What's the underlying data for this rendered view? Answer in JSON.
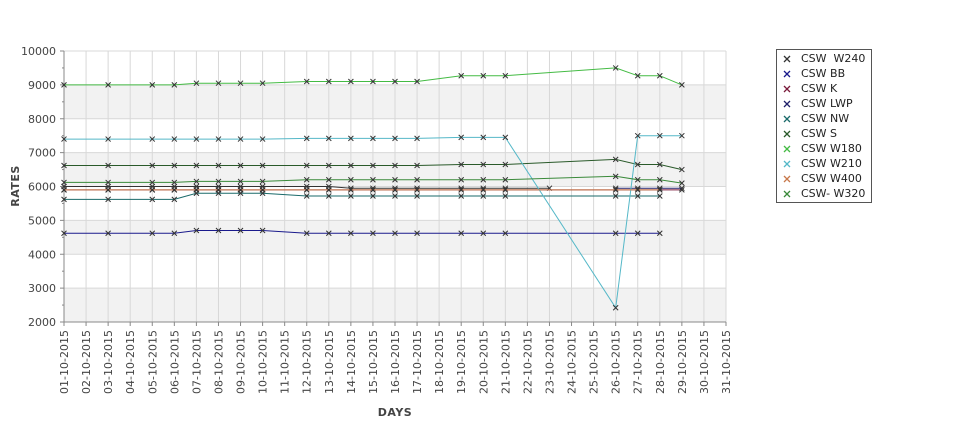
{
  "chart_data": {
    "type": "line",
    "xlabel": "DAYS",
    "ylabel": "RATES",
    "ylim": [
      2000,
      10000
    ],
    "yticks": [
      2000,
      3000,
      4000,
      5000,
      6000,
      7000,
      8000,
      9000,
      10000
    ],
    "x": [
      "01-10-2015",
      "02-10-2015",
      "03-10-2015",
      "04-10-2015",
      "05-10-2015",
      "06-10-2015",
      "07-10-2015",
      "08-10-2015",
      "09-10-2015",
      "10-10-2015",
      "11-10-2015",
      "12-10-2015",
      "13-10-2015",
      "14-10-2015",
      "15-10-2015",
      "16-10-2015",
      "17-10-2015",
      "18-10-2015",
      "19-10-2015",
      "20-10-2015",
      "21-10-2015",
      "22-10-2015",
      "23-10-2015",
      "24-10-2015",
      "25-10-2015",
      "26-10-2015",
      "27-10-2015",
      "28-10-2015",
      "29-10-2015",
      "30-10-2015",
      "31-10-2015"
    ],
    "grid": true,
    "legend_position": "right",
    "series": [
      {
        "name": "CSW  W240",
        "color": "#333333",
        "points": [
          [
            1,
            6000
          ],
          [
            3,
            6000
          ],
          [
            5,
            6000
          ],
          [
            6,
            6000
          ],
          [
            7,
            6000
          ],
          [
            8,
            6000
          ],
          [
            9,
            6000
          ],
          [
            10,
            6000
          ],
          [
            12,
            6000
          ],
          [
            13,
            6000
          ],
          [
            14,
            5950
          ],
          [
            15,
            5950
          ],
          [
            16,
            5950
          ],
          [
            17,
            5950
          ],
          [
            19,
            5950
          ],
          [
            20,
            5950
          ],
          [
            21,
            5950
          ],
          [
            23,
            5950
          ]
        ]
      },
      {
        "name": "CSW BB",
        "color": "#1a1a8c",
        "points": [
          [
            1,
            4620
          ],
          [
            3,
            4620
          ],
          [
            5,
            4620
          ],
          [
            6,
            4620
          ],
          [
            7,
            4700
          ],
          [
            8,
            4700
          ],
          [
            9,
            4700
          ],
          [
            10,
            4700
          ],
          [
            12,
            4620
          ],
          [
            13,
            4620
          ],
          [
            14,
            4620
          ],
          [
            15,
            4620
          ],
          [
            16,
            4620
          ],
          [
            17,
            4620
          ],
          [
            19,
            4620
          ],
          [
            20,
            4620
          ],
          [
            21,
            4620
          ],
          [
            26,
            4620
          ],
          [
            27,
            4620
          ],
          [
            28,
            4620
          ]
        ]
      },
      {
        "name": "CSW K",
        "color": "#7a1a3a",
        "points": [
          [
            1,
            5900
          ],
          [
            3,
            5900
          ],
          [
            5,
            5900
          ],
          [
            6,
            5900
          ],
          [
            7,
            5900
          ],
          [
            8,
            5900
          ],
          [
            9,
            5900
          ],
          [
            10,
            5900
          ],
          [
            12,
            5900
          ],
          [
            13,
            5900
          ],
          [
            14,
            5900
          ],
          [
            15,
            5900
          ],
          [
            16,
            5900
          ],
          [
            17,
            5900
          ],
          [
            19,
            5900
          ],
          [
            20,
            5900
          ],
          [
            21,
            5900
          ],
          [
            26,
            5900
          ],
          [
            27,
            5900
          ],
          [
            28,
            5900
          ],
          [
            29,
            5900
          ]
        ]
      },
      {
        "name": "CSW LWP",
        "color": "#20206a",
        "points": [
          [
            26,
            5950
          ],
          [
            27,
            5950
          ],
          [
            28,
            5950
          ],
          [
            29,
            5950
          ]
        ]
      },
      {
        "name": "CSW NW",
        "color": "#1a6a6a",
        "points": [
          [
            1,
            5620
          ],
          [
            3,
            5620
          ],
          [
            5,
            5620
          ],
          [
            6,
            5620
          ],
          [
            7,
            5800
          ],
          [
            8,
            5800
          ],
          [
            9,
            5800
          ],
          [
            10,
            5800
          ],
          [
            12,
            5720
          ],
          [
            13,
            5720
          ],
          [
            14,
            5720
          ],
          [
            15,
            5720
          ],
          [
            16,
            5720
          ],
          [
            17,
            5720
          ],
          [
            19,
            5720
          ],
          [
            20,
            5720
          ],
          [
            21,
            5720
          ],
          [
            26,
            5720
          ],
          [
            27,
            5720
          ],
          [
            28,
            5720
          ]
        ]
      },
      {
        "name": "CSW S",
        "color": "#2a5a2a",
        "points": [
          [
            1,
            6620
          ],
          [
            3,
            6620
          ],
          [
            5,
            6620
          ],
          [
            6,
            6620
          ],
          [
            7,
            6620
          ],
          [
            8,
            6620
          ],
          [
            9,
            6620
          ],
          [
            10,
            6620
          ],
          [
            12,
            6620
          ],
          [
            13,
            6620
          ],
          [
            14,
            6620
          ],
          [
            15,
            6620
          ],
          [
            16,
            6620
          ],
          [
            17,
            6620
          ],
          [
            19,
            6650
          ],
          [
            20,
            6650
          ],
          [
            21,
            6650
          ],
          [
            26,
            6800
          ],
          [
            27,
            6650
          ],
          [
            28,
            6650
          ],
          [
            29,
            6500
          ]
        ]
      },
      {
        "name": "CSW W180",
        "color": "#44bb44",
        "points": [
          [
            1,
            9000
          ],
          [
            3,
            9000
          ],
          [
            5,
            9000
          ],
          [
            6,
            9000
          ],
          [
            7,
            9050
          ],
          [
            8,
            9050
          ],
          [
            9,
            9050
          ],
          [
            10,
            9050
          ],
          [
            12,
            9100
          ],
          [
            13,
            9100
          ],
          [
            14,
            9100
          ],
          [
            15,
            9100
          ],
          [
            16,
            9100
          ],
          [
            17,
            9100
          ],
          [
            19,
            9270
          ],
          [
            20,
            9270
          ],
          [
            21,
            9270
          ],
          [
            26,
            9500
          ],
          [
            27,
            9270
          ],
          [
            28,
            9270
          ],
          [
            29,
            9000
          ]
        ]
      },
      {
        "name": "CSW W210",
        "color": "#55b8c8",
        "points": [
          [
            1,
            7400
          ],
          [
            3,
            7400
          ],
          [
            5,
            7400
          ],
          [
            6,
            7400
          ],
          [
            7,
            7400
          ],
          [
            8,
            7400
          ],
          [
            9,
            7400
          ],
          [
            10,
            7400
          ],
          [
            12,
            7420
          ],
          [
            13,
            7420
          ],
          [
            14,
            7420
          ],
          [
            15,
            7420
          ],
          [
            16,
            7420
          ],
          [
            17,
            7420
          ],
          [
            19,
            7450
          ],
          [
            20,
            7450
          ],
          [
            21,
            7450
          ],
          [
            26,
            2420
          ],
          [
            27,
            7500
          ],
          [
            28,
            7500
          ],
          [
            29,
            7500
          ]
        ]
      },
      {
        "name": "CSW W400",
        "color": "#c8784a",
        "points": [
          [
            1,
            5900
          ],
          [
            3,
            5900
          ],
          [
            5,
            5900
          ],
          [
            6,
            5900
          ],
          [
            7,
            5900
          ],
          [
            8,
            5900
          ],
          [
            9,
            5900
          ],
          [
            10,
            5900
          ],
          [
            12,
            5900
          ],
          [
            13,
            5900
          ],
          [
            14,
            5900
          ],
          [
            15,
            5900
          ],
          [
            16,
            5900
          ],
          [
            17,
            5900
          ],
          [
            19,
            5900
          ],
          [
            20,
            5900
          ],
          [
            21,
            5900
          ],
          [
            26,
            5900
          ],
          [
            27,
            5900
          ],
          [
            28,
            5900
          ]
        ]
      },
      {
        "name": "CSW- W320",
        "color": "#3a8a3a",
        "points": [
          [
            1,
            6120
          ],
          [
            3,
            6120
          ],
          [
            5,
            6120
          ],
          [
            6,
            6120
          ],
          [
            7,
            6150
          ],
          [
            8,
            6150
          ],
          [
            9,
            6150
          ],
          [
            10,
            6150
          ],
          [
            12,
            6200
          ],
          [
            13,
            6200
          ],
          [
            14,
            6200
          ],
          [
            15,
            6200
          ],
          [
            16,
            6200
          ],
          [
            17,
            6200
          ],
          [
            19,
            6200
          ],
          [
            20,
            6200
          ],
          [
            21,
            6200
          ],
          [
            26,
            6300
          ],
          [
            27,
            6200
          ],
          [
            28,
            6200
          ],
          [
            29,
            6100
          ]
        ]
      }
    ]
  }
}
